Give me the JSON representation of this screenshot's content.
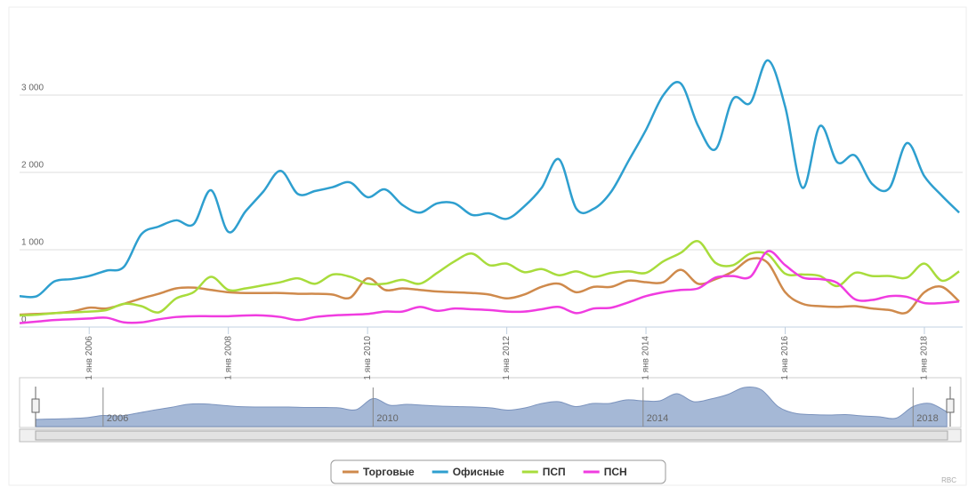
{
  "chart_data": {
    "type": "line",
    "x": [
      2005,
      2005.25,
      2005.5,
      2005.75,
      2006,
      2006.25,
      2006.5,
      2006.75,
      2007,
      2007.25,
      2007.5,
      2007.75,
      2008,
      2008.25,
      2008.5,
      2008.75,
      2009,
      2009.25,
      2009.5,
      2009.75,
      2010,
      2010.25,
      2010.5,
      2010.75,
      2011,
      2011.25,
      2011.5,
      2011.75,
      2012,
      2012.25,
      2012.5,
      2012.75,
      2013,
      2013.25,
      2013.5,
      2013.75,
      2014,
      2014.25,
      2014.5,
      2014.75,
      2015,
      2015.25,
      2015.5,
      2015.75,
      2016,
      2016.25,
      2016.5,
      2016.75,
      2017,
      2017.25,
      2017.5,
      2017.75,
      2018,
      2018.25,
      2018.5
    ],
    "series": [
      {
        "name": "Торговые",
        "color": "#cf8a4c",
        "values": [
          160,
          170,
          180,
          200,
          250,
          240,
          300,
          370,
          430,
          500,
          510,
          480,
          450,
          440,
          440,
          440,
          430,
          430,
          420,
          380,
          630,
          480,
          500,
          480,
          460,
          450,
          440,
          420,
          370,
          420,
          520,
          560,
          450,
          520,
          520,
          600,
          580,
          580,
          740,
          560,
          620,
          720,
          880,
          830,
          450,
          300,
          270,
          260,
          270,
          240,
          220,
          190,
          450,
          520,
          330
        ]
      },
      {
        "name": "Офисные",
        "color": "#2e9fcf",
        "values": [
          400,
          400,
          590,
          620,
          660,
          730,
          780,
          1200,
          1300,
          1380,
          1330,
          1770,
          1230,
          1500,
          1750,
          2020,
          1720,
          1760,
          1810,
          1870,
          1680,
          1780,
          1580,
          1480,
          1600,
          1600,
          1450,
          1470,
          1400,
          1560,
          1800,
          2170,
          1530,
          1530,
          1750,
          2150,
          2550,
          3000,
          3150,
          2600,
          2300,
          2950,
          2900,
          3450,
          2850,
          1800,
          2600,
          2130,
          2220,
          1850,
          1800,
          2380,
          1950,
          1700,
          1480
        ]
      },
      {
        "name": "ПСП",
        "color": "#a8dc3c",
        "values": [
          150,
          160,
          180,
          190,
          200,
          220,
          300,
          270,
          190,
          370,
          450,
          650,
          480,
          500,
          540,
          580,
          630,
          560,
          680,
          650,
          560,
          560,
          610,
          560,
          700,
          850,
          950,
          800,
          820,
          710,
          750,
          670,
          720,
          650,
          700,
          720,
          700,
          850,
          960,
          1110,
          830,
          800,
          950,
          940,
          690,
          680,
          660,
          530,
          700,
          660,
          660,
          640,
          820,
          600,
          720
        ]
      },
      {
        "name": "ПСН",
        "color": "#f03ce0",
        "values": [
          50,
          70,
          90,
          100,
          110,
          120,
          60,
          60,
          100,
          130,
          140,
          140,
          140,
          150,
          150,
          130,
          90,
          130,
          150,
          160,
          170,
          200,
          200,
          260,
          210,
          240,
          230,
          220,
          200,
          200,
          230,
          260,
          180,
          240,
          250,
          320,
          400,
          450,
          480,
          500,
          640,
          660,
          650,
          980,
          800,
          640,
          620,
          570,
          360,
          350,
          400,
          390,
          310,
          310,
          330
        ]
      }
    ],
    "xlim": [
      2005,
      2018.55
    ],
    "xticks": [
      {
        "value": 2006,
        "label": "1 янв 2006"
      },
      {
        "value": 2008,
        "label": "1 янв 2008"
      },
      {
        "value": 2010,
        "label": "1 янв 2010"
      },
      {
        "value": 2012,
        "label": "1 янв 2012"
      },
      {
        "value": 2014,
        "label": "1 янв 2014"
      },
      {
        "value": 2016,
        "label": "1 янв 2016"
      },
      {
        "value": 2018,
        "label": "1 янв 2018"
      }
    ],
    "ylim": [
      0,
      4000
    ],
    "yticks": [
      0,
      {
        "value": 1000,
        "label": "1 000"
      },
      {
        "value": 2000,
        "label": "2 000"
      },
      {
        "value": 3000,
        "label": "3 000"
      }
    ],
    "grid": true,
    "navigator_xticks": [
      2006,
      2010,
      2014,
      2018
    ],
    "credit": "RBC"
  }
}
